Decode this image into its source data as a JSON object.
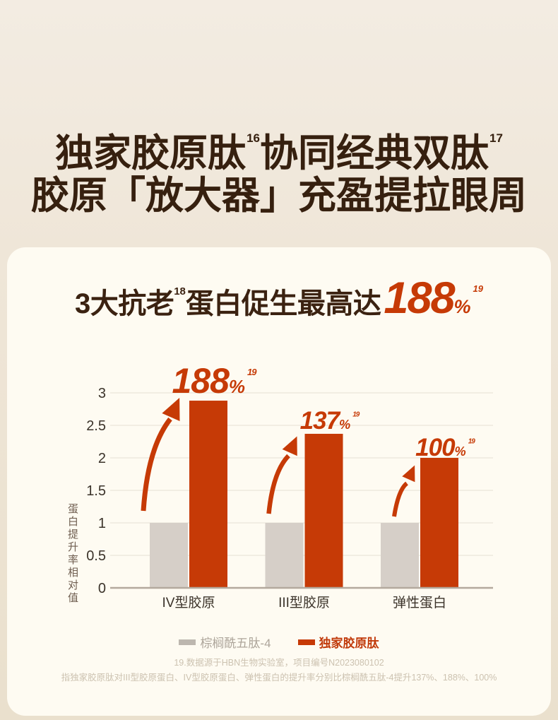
{
  "heading": {
    "line1_a": "独家胶原肽",
    "line1_sup1": "16",
    "line1_b": "协同经典双肽",
    "line1_sup2": "17",
    "line2": "胶原「放大器」充盈提拉眼周"
  },
  "card_title": {
    "a": "3大抗老",
    "sup_a": "18",
    "b": "蛋白促生最高达",
    "big": "188",
    "pct": "%",
    "sup_b": "19"
  },
  "legend": {
    "items": [
      {
        "label": "棕榈酰五肽-4",
        "swatch_color": "#BDB7AF",
        "text_color": "#ADA59A",
        "bold": false
      },
      {
        "label": "独家胶原肽",
        "swatch_color": "#C63A06",
        "text_color": "#C13A0B",
        "bold": true
      }
    ]
  },
  "footnotes": [
    "19.数据源于HBN生物实验室，项目编号N2023080102",
    "指独家胶原肽对III型胶原蛋白、IV型胶原蛋白、弹性蛋白的提升率分别比棕榈酰五肽-4提升137%、188%、100%"
  ],
  "colors": {
    "background_top": "#F3ECE2",
    "background_bottom": "#EAE0CD",
    "card": "#FEFBF2",
    "heading_brown": "#36200F",
    "accent_red": "#C63A06",
    "bar_gray": "#D6CFC8",
    "gridline": "#EAE5DA",
    "axis_line": "#B3A99D",
    "tick_text": "#3B332A",
    "footnote_text": "#CCC2B0"
  },
  "chart_data": {
    "type": "bar",
    "title": "3大抗老¹⁸蛋白促生最高达188%¹⁹",
    "categories": [
      "IV型胶原",
      "III型胶原",
      "弹性蛋白"
    ],
    "series": [
      {
        "name": "棕榈酰五肽-4",
        "color": "#D6CFC8",
        "values": [
          1,
          1,
          1
        ]
      },
      {
        "name": "独家胶原肽",
        "color": "#C63A06",
        "values": [
          2.88,
          2.37,
          2.0
        ]
      }
    ],
    "annotations": [
      {
        "num": "188",
        "suffix": "%",
        "sup": "19"
      },
      {
        "num": "137",
        "suffix": "%",
        "sup": "19"
      },
      {
        "num": "100",
        "suffix": "%",
        "sup": "19"
      }
    ],
    "ylabel": "蛋白提升率相对值",
    "yticks": [
      0,
      0.5,
      1,
      1.5,
      2,
      2.5,
      3
    ],
    "ylim": [
      0,
      3
    ],
    "grid": true,
    "legend_position": "bottom"
  }
}
